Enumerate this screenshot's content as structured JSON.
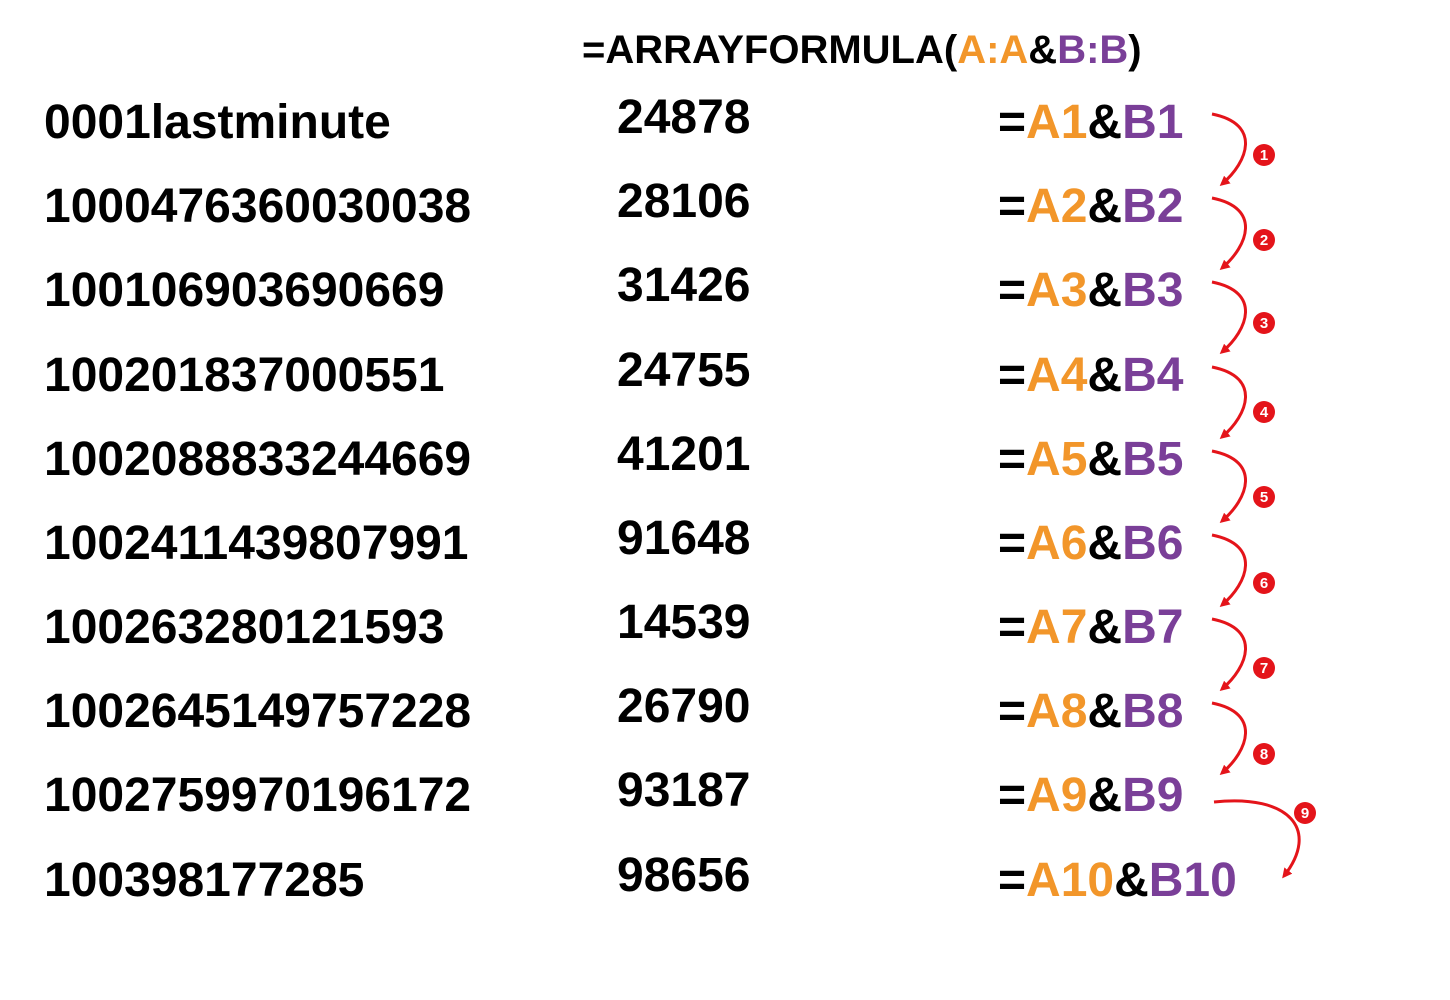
{
  "header": {
    "prefix": "=ARRAYFORMULA(",
    "ref_a": "A:A",
    "amp": "&",
    "ref_b": "B:B",
    "suffix": ")"
  },
  "colors": {
    "column_a": "#F2962A",
    "column_b": "#7A3F98",
    "arrow": "#E4141A",
    "text": "#000000"
  },
  "rows": [
    {
      "a": "0001lastminute",
      "b": "24878",
      "eq": "=",
      "ref_a": "A1",
      "amp": "&",
      "ref_b": "B1"
    },
    {
      "a": "1000476360030038",
      "b": "28106",
      "eq": "=",
      "ref_a": "A2",
      "amp": "&",
      "ref_b": "B2"
    },
    {
      "a": "100106903690669",
      "b": "31426",
      "eq": "=",
      "ref_a": "A3",
      "amp": "&",
      "ref_b": "B3"
    },
    {
      "a": "100201837000551",
      "b": "24755",
      "eq": "=",
      "ref_a": "A4",
      "amp": "&",
      "ref_b": "B4"
    },
    {
      "a": "1002088833244669",
      "b": "41201",
      "eq": "=",
      "ref_a": "A5",
      "amp": "&",
      "ref_b": "B5"
    },
    {
      "a": "1002411439807991",
      "b": "91648",
      "eq": "=",
      "ref_a": "A6",
      "amp": "&",
      "ref_b": "B6"
    },
    {
      "a": "100263280121593",
      "b": "14539",
      "eq": "=",
      "ref_a": "A7",
      "amp": "&",
      "ref_b": "B7"
    },
    {
      "a": "1002645149757228",
      "b": "26790",
      "eq": "=",
      "ref_a": "A8",
      "amp": "&",
      "ref_b": "B8"
    },
    {
      "a": "1002759970196172",
      "b": "93187",
      "eq": "=",
      "ref_a": "A9",
      "amp": "&",
      "ref_b": "B9"
    },
    {
      "a": "100398177285",
      "b": "98656",
      "eq": "=",
      "ref_a": "A10",
      "amp": "&",
      "ref_b": "B10"
    }
  ],
  "steps": [
    "1",
    "2",
    "3",
    "4",
    "5",
    "6",
    "7",
    "8",
    "9"
  ]
}
